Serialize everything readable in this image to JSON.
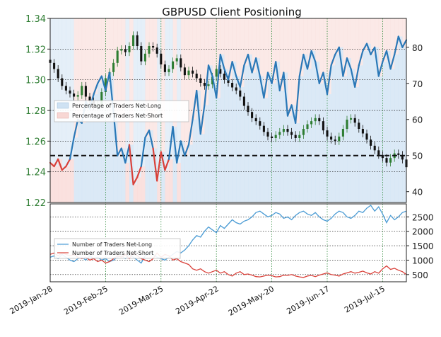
{
  "chart_data": [
    {
      "type": "line",
      "panel": "top",
      "title": "GBPUSD Client Positioning",
      "x_ticks": [
        "2019-Jan-28",
        "2019-Feb-25",
        "2019-Mar-25",
        "2019-Apr-22",
        "2019-May-20",
        "2019-Jun-17",
        "2019-Jul-15"
      ],
      "left_axis": {
        "label": "",
        "ylim": [
          1.22,
          1.34
        ],
        "ticks": [
          "1.22",
          "1.24",
          "1.26",
          "1.28",
          "1.30",
          "1.32",
          "1.34"
        ],
        "color": "#2e7d32"
      },
      "right_axis": {
        "label": "",
        "ylim": [
          37,
          88
        ],
        "ticks": [
          "40",
          "50",
          "60",
          "70",
          "80"
        ],
        "color": "#222222"
      },
      "grid": true,
      "legend_position": "center-left",
      "series": [
        {
          "name": "Percentage of Traders Net-Long",
          "axis": "right",
          "style": "line",
          "colors": {
            "above_50": "#2a78b7",
            "below_50": "#d9413a"
          },
          "fill_color": "#cfe2f3",
          "x": [
            0,
            2,
            4,
            6,
            8,
            10,
            12,
            14,
            16,
            18,
            20,
            22,
            24,
            26,
            28,
            30,
            32,
            34,
            36,
            38,
            40,
            42,
            44,
            46,
            48,
            50,
            52,
            54,
            56,
            58,
            60,
            62,
            64,
            66,
            68,
            70,
            72,
            74,
            76,
            78,
            80,
            82,
            84,
            86,
            88,
            90,
            92,
            94,
            96,
            98,
            100,
            102,
            104,
            106,
            108,
            110,
            112,
            114,
            116,
            118,
            120,
            122,
            124,
            126,
            128,
            130,
            132,
            134,
            136,
            138,
            140,
            142,
            144,
            146,
            148,
            150,
            152,
            154,
            156,
            158,
            160,
            162,
            164,
            166,
            168,
            170,
            172,
            174,
            176,
            178,
            180
          ],
          "values": [
            48,
            47,
            49,
            46,
            47,
            49,
            55,
            60,
            59,
            65,
            63,
            67,
            70,
            72,
            68,
            73,
            62,
            50,
            52,
            48,
            53,
            42,
            44,
            47,
            55,
            57,
            52,
            43,
            51,
            46,
            49,
            58,
            48,
            54,
            50,
            53,
            60,
            68,
            56,
            64,
            75,
            72,
            66,
            78,
            74,
            71,
            76,
            72,
            69,
            75,
            78,
            73,
            77,
            72,
            66,
            73,
            70,
            76,
            68,
            73,
            61,
            64,
            59,
            72,
            78,
            74,
            79,
            76,
            70,
            73,
            67,
            75,
            78,
            80,
            72,
            77,
            74,
            69,
            75,
            79,
            81,
            78,
            80,
            72,
            76,
            79,
            74,
            78,
            83,
            80,
            82
          ]
        },
        {
          "name": "Percentage of Traders Net-Short",
          "axis": "right",
          "style": "area",
          "fill_color": "#f8d7d4"
        },
        {
          "name": "GBPUSD",
          "axis": "left",
          "style": "candles",
          "up_color": "#2e7d32",
          "down_color": "#111111",
          "x": [
            0,
            2,
            4,
            6,
            8,
            10,
            12,
            14,
            16,
            18,
            20,
            22,
            24,
            26,
            28,
            30,
            32,
            34,
            36,
            38,
            40,
            42,
            44,
            46,
            48,
            50,
            52,
            54,
            56,
            58,
            60,
            62,
            64,
            66,
            68,
            70,
            72,
            74,
            76,
            78,
            80,
            82,
            84,
            86,
            88,
            90,
            92,
            94,
            96,
            98,
            100,
            102,
            104,
            106,
            108,
            110,
            112,
            114,
            116,
            118,
            120,
            122,
            124,
            126,
            128,
            130,
            132,
            134,
            136,
            138,
            140,
            142,
            144,
            146,
            148,
            150,
            152,
            154,
            156,
            158,
            160,
            162,
            164,
            166,
            168,
            170,
            172,
            174,
            176,
            178,
            180
          ],
          "values": [
            1.311,
            1.307,
            1.301,
            1.296,
            1.293,
            1.291,
            1.289,
            1.29,
            1.296,
            1.289,
            1.286,
            1.283,
            1.284,
            1.292,
            1.301,
            1.305,
            1.311,
            1.319,
            1.32,
            1.318,
            1.322,
            1.329,
            1.322,
            1.312,
            1.317,
            1.322,
            1.321,
            1.317,
            1.31,
            1.305,
            1.307,
            1.312,
            1.314,
            1.308,
            1.303,
            1.306,
            1.304,
            1.301,
            1.298,
            1.296,
            1.297,
            1.302,
            1.307,
            1.304,
            1.3,
            1.298,
            1.295,
            1.293,
            1.289,
            1.283,
            1.279,
            1.275,
            1.273,
            1.27,
            1.266,
            1.263,
            1.262,
            1.264,
            1.266,
            1.268,
            1.266,
            1.264,
            1.262,
            1.264,
            1.268,
            1.271,
            1.273,
            1.275,
            1.273,
            1.267,
            1.263,
            1.261,
            1.26,
            1.263,
            1.268,
            1.274,
            1.275,
            1.272,
            1.268,
            1.265,
            1.261,
            1.257,
            1.254,
            1.251,
            1.249,
            1.246,
            1.249,
            1.252,
            1.251,
            1.248,
            1.243
          ]
        }
      ],
      "zero_line": {
        "value": 50,
        "axis": "right",
        "style": "dashed",
        "color": "#111111"
      }
    },
    {
      "type": "line",
      "panel": "bottom",
      "right_axis": {
        "label": "",
        "ylim": [
          250,
          2950
        ],
        "ticks": [
          "500",
          "1000",
          "1500",
          "2000",
          "2500"
        ]
      },
      "grid": true,
      "legend_position": "center-left",
      "series": [
        {
          "name": "Number of Traders Net-Long",
          "color": "#4a9bd4",
          "x": [
            0,
            2,
            4,
            6,
            8,
            10,
            12,
            14,
            16,
            18,
            20,
            22,
            24,
            26,
            28,
            30,
            32,
            34,
            36,
            38,
            40,
            42,
            44,
            46,
            48,
            50,
            52,
            54,
            56,
            58,
            60,
            62,
            64,
            66,
            68,
            70,
            72,
            74,
            76,
            78,
            80,
            82,
            84,
            86,
            88,
            90,
            92,
            94,
            96,
            98,
            100,
            102,
            104,
            106,
            108,
            110,
            112,
            114,
            116,
            118,
            120,
            122,
            124,
            126,
            128,
            130,
            132,
            134,
            136,
            138,
            140,
            142,
            144,
            146,
            148,
            150,
            152,
            154,
            156,
            158,
            160,
            162,
            164,
            166,
            168,
            170,
            172,
            174,
            176,
            178,
            180
          ],
          "values": [
            1100,
            1150,
            1050,
            1200,
            1100,
            1000,
            950,
            1050,
            1100,
            1000,
            1150,
            1050,
            1100,
            1000,
            1050,
            950,
            1000,
            1100,
            1150,
            1050,
            1200,
            1100,
            1000,
            900,
            1150,
            1250,
            1200,
            1100,
            1050,
            1000,
            1100,
            1200,
            1300,
            1250,
            1350,
            1500,
            1700,
            1850,
            1800,
            2000,
            2150,
            2050,
            1950,
            2200,
            2100,
            2250,
            2400,
            2300,
            2250,
            2350,
            2400,
            2500,
            2650,
            2700,
            2600,
            2500,
            2550,
            2650,
            2600,
            2450,
            2500,
            2400,
            2550,
            2650,
            2700,
            2600,
            2550,
            2650,
            2500,
            2400,
            2350,
            2450,
            2600,
            2700,
            2650,
            2500,
            2450,
            2550,
            2700,
            2650,
            2800,
            2900,
            2700,
            2850,
            2600,
            2300,
            2550,
            2400,
            2500,
            2650,
            2700
          ]
        },
        {
          "name": "Number of Traders Net-Short",
          "color": "#d9413a",
          "x": [
            0,
            2,
            4,
            6,
            8,
            10,
            12,
            14,
            16,
            18,
            20,
            22,
            24,
            26,
            28,
            30,
            32,
            34,
            36,
            38,
            40,
            42,
            44,
            46,
            48,
            50,
            52,
            54,
            56,
            58,
            60,
            62,
            64,
            66,
            68,
            70,
            72,
            74,
            76,
            78,
            80,
            82,
            84,
            86,
            88,
            90,
            92,
            94,
            96,
            98,
            100,
            102,
            104,
            106,
            108,
            110,
            112,
            114,
            116,
            118,
            120,
            122,
            124,
            126,
            128,
            130,
            132,
            134,
            136,
            138,
            140,
            142,
            144,
            146,
            148,
            150,
            152,
            154,
            156,
            158,
            160,
            162,
            164,
            166,
            168,
            170,
            172,
            174,
            176,
            178,
            180
          ],
          "values": [
            1200,
            1250,
            1150,
            1250,
            1200,
            1150,
            1200,
            1100,
            1050,
            1100,
            1000,
            1050,
            950,
            1000,
            900,
            950,
            1050,
            1150,
            1100,
            1200,
            1050,
            1250,
            1150,
            1050,
            1000,
            950,
            1050,
            1250,
            1100,
            1200,
            1150,
            1000,
            1050,
            950,
            900,
            850,
            700,
            650,
            700,
            600,
            550,
            600,
            650,
            550,
            600,
            500,
            450,
            550,
            600,
            500,
            520,
            480,
            430,
            420,
            450,
            480,
            460,
            420,
            430,
            480,
            470,
            500,
            450,
            420,
            400,
            450,
            470,
            430,
            480,
            520,
            560,
            500,
            480,
            450,
            520,
            560,
            600,
            550,
            580,
            620,
            560,
            520,
            600,
            550,
            700,
            800,
            680,
            720,
            650,
            600,
            500
          ]
        }
      ]
    }
  ]
}
